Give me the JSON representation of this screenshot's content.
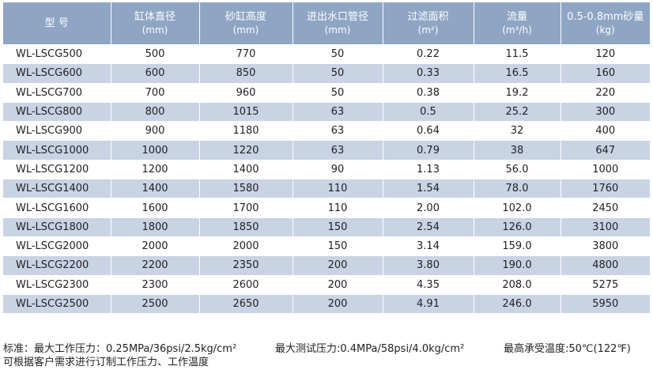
{
  "table": {
    "headers": [
      {
        "label": "型  号",
        "unit": ""
      },
      {
        "label": "缸体直径",
        "unit": "(mm)"
      },
      {
        "label": "砂缸高度",
        "unit": "(mm)"
      },
      {
        "label": "进出水口管径",
        "unit": "(mm)"
      },
      {
        "label": "过滤面积",
        "unit": "(m²)"
      },
      {
        "label": "流量",
        "unit": "(m³/h)"
      },
      {
        "label": "0.5-0.8mm砂量",
        "unit": "(kg)"
      }
    ],
    "rows": [
      [
        "WL-LSCG500",
        "500",
        "770",
        "50",
        "0.22",
        "11.5",
        "120"
      ],
      [
        "WL-LSCG600",
        "600",
        "850",
        "50",
        "0.33",
        "16.5",
        "160"
      ],
      [
        "WL-LSCG700",
        "700",
        "960",
        "50",
        "0.38",
        "19.2",
        "220"
      ],
      [
        "WL-LSCG800",
        "800",
        "1015",
        "63",
        "0.5",
        "25.2",
        "300"
      ],
      [
        "WL-LSCG900",
        "900",
        "1180",
        "63",
        "0.64",
        "32",
        "400"
      ],
      [
        "WL-LSCG1000",
        "1000",
        "1220",
        "63",
        "0.79",
        "38",
        "647"
      ],
      [
        "WL-LSCG1200",
        "1200",
        "1400",
        "90",
        "1.13",
        "56.0",
        "1000"
      ],
      [
        "WL-LSCG1400",
        "1400",
        "1580",
        "110",
        "1.54",
        "78.0",
        "1760"
      ],
      [
        "WL-LSCG1600",
        "1600",
        "1700",
        "110",
        "2.00",
        "102.0",
        "2450"
      ],
      [
        "WL-LSCG1800",
        "1800",
        "1850",
        "150",
        "2.54",
        "126.0",
        "3100"
      ],
      [
        "WL-LSCG2000",
        "2000",
        "2000",
        "150",
        "3.14",
        "159.0",
        "3800"
      ],
      [
        "WL-LSCG2200",
        "2200",
        "2350",
        "200",
        "3.80",
        "190.0",
        "4800"
      ],
      [
        "WL-LSCG2300",
        "2300",
        "2600",
        "200",
        "4.35",
        "208.0",
        "5275"
      ],
      [
        "WL-LSCG2500",
        "2500",
        "2650",
        "200",
        "4.91",
        "246.0",
        "5950"
      ]
    ]
  },
  "notes": {
    "standard_pressure": "标准：最大工作压力：0.25MPa/36psi/2.5kg/cm²",
    "test_pressure": "最大测试压力:0.4MPa/58psi/4.0kg/cm²",
    "max_temperature": "最高承受温度:50℃(122℉)",
    "customization": "可根据客户需求进行订制工作压力、工作温度"
  },
  "colors": {
    "header_bg": "#8fa5c4",
    "stripe_bg": "#c8d3e4",
    "row_bg": "#ffffff"
  }
}
